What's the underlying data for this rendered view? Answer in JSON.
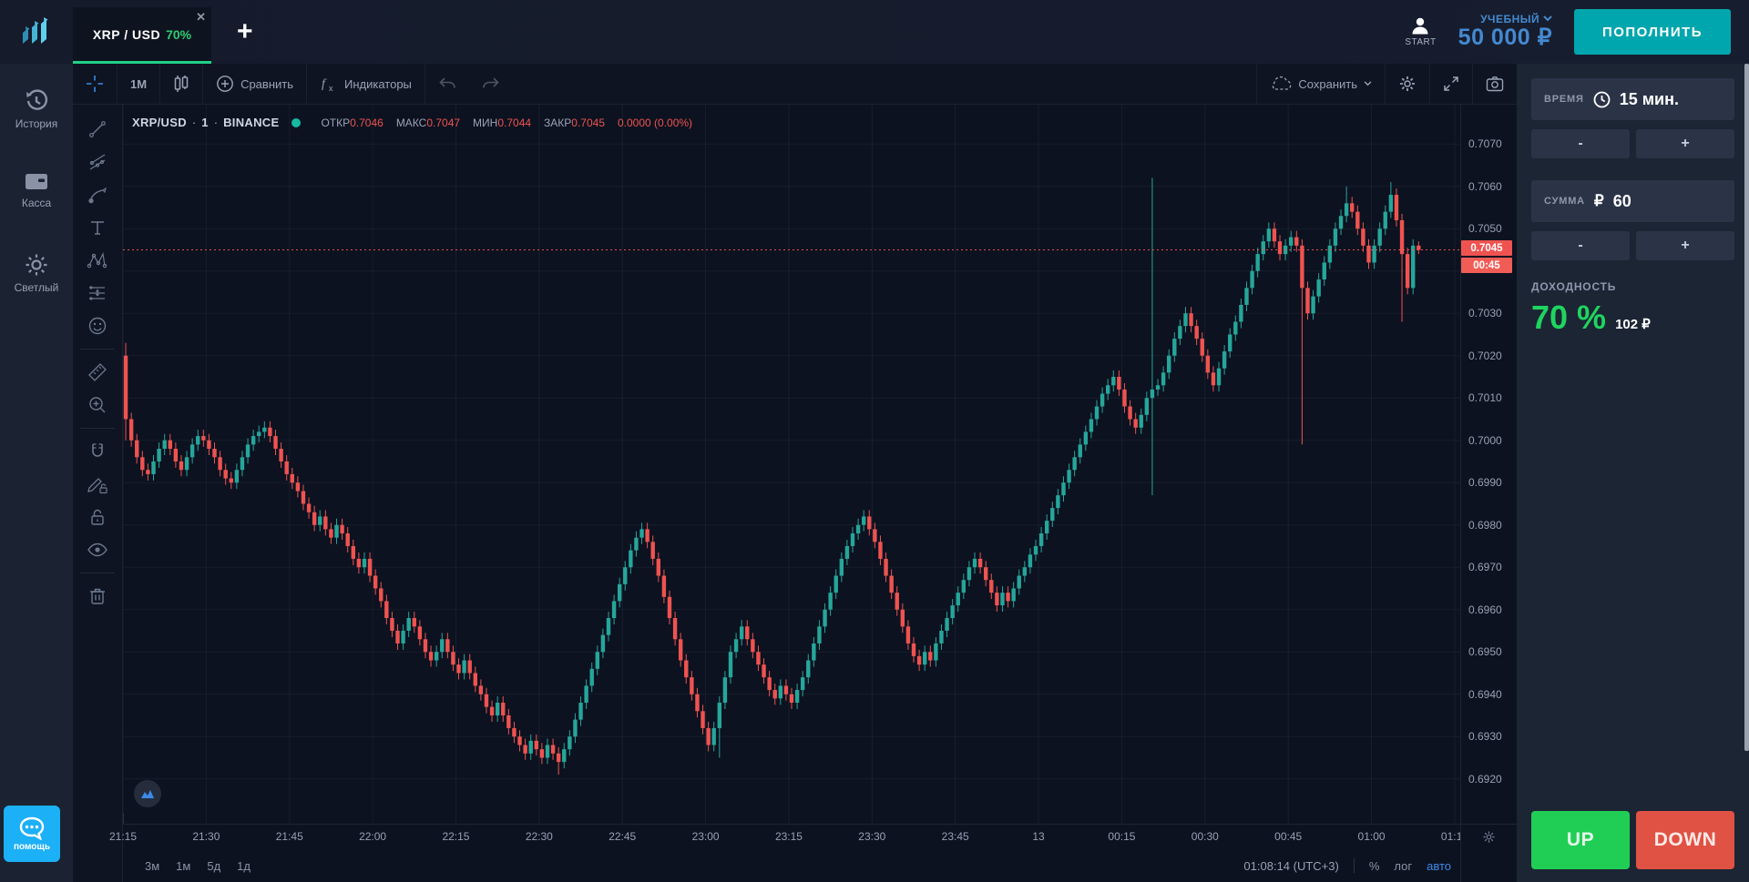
{
  "topbar": {
    "tab": {
      "symbol": "XRP / USD",
      "payout": "70%",
      "close": "✕"
    },
    "add_tab": "+",
    "start_label": "START",
    "account_type": "УЧЕБНЫЙ",
    "balance": "50 000 ₽",
    "deposit_button": "ПОПОЛНИТЬ"
  },
  "sidebar": {
    "items": [
      {
        "label": "История"
      },
      {
        "label": "Касса"
      },
      {
        "label": "Светлый"
      }
    ],
    "help_label": "помощь"
  },
  "chart_toolbar": {
    "interval": "1М",
    "compare": "Сравнить",
    "indicators": "Индикаторы",
    "save": "Сохранить"
  },
  "legend": {
    "symbol": "XRP/USD",
    "sep1": "·",
    "interval": "1",
    "sep2": "·",
    "exchange": "BINANCE",
    "open_label": "ОТКР",
    "open": "0.7046",
    "high_label": "МАКС",
    "high": "0.7047",
    "low_label": "МИН",
    "low": "0.7044",
    "close_label": "ЗАКР",
    "close": "0.7045",
    "change": "0.0000 (0.00%)"
  },
  "price_axis": {
    "ticks": [
      0.707,
      0.706,
      0.705,
      0.703,
      0.702,
      0.701,
      0.7,
      0.699,
      0.698,
      0.697,
      0.696,
      0.695,
      0.694,
      0.693,
      0.692
    ],
    "last_price": "0.7045",
    "countdown": "00:45"
  },
  "time_axis": {
    "labels": [
      "21:15",
      "21:30",
      "21:45",
      "22:00",
      "22:15",
      "22:30",
      "22:45",
      "23:00",
      "23:15",
      "23:30",
      "23:45",
      "13",
      "00:15",
      "00:30",
      "00:45",
      "01:00",
      "01:15"
    ],
    "minutes_step": 15
  },
  "bottom_bar": {
    "ranges": [
      "3м",
      "1м",
      "5д",
      "1д"
    ],
    "clock": "01:08:14 (UTC+3)",
    "percent": "%",
    "log": "лог",
    "auto": "авто"
  },
  "trade_panel": {
    "time_label": "ВРЕМЯ",
    "time_value": "15 мин.",
    "amount_label": "СУММА",
    "amount_currency": "₽",
    "amount_value": "60",
    "minus": "-",
    "plus": "+",
    "payout_label": "ДОХОДНОСТЬ",
    "payout_percent": "70 %",
    "payout_amount": "102 ₽",
    "up": "UP",
    "down": "DOWN"
  },
  "colors": {
    "candle_up": "#26a69a",
    "candle_down": "#ef5350",
    "price_line": "#ef5350",
    "badge_price": "#ef5350",
    "badge_countdown": "#f05d56",
    "up_button": "#21ce55",
    "down_button": "#e05243",
    "deposit_teal": "#00a6ad",
    "blue_text": "#4489cf",
    "help_blue": "#1cb0f6",
    "payout_green": "#1fd45f",
    "tab_underline": "#1fd286",
    "grid": "rgba(255,255,255,0.05)"
  },
  "chart_data": {
    "type": "candlestick",
    "symbol": "XRP/USD",
    "exchange": "BINANCE",
    "interval_minutes": 1,
    "start_time": "21:15",
    "end_time": "01:08",
    "axis_end_time": "01:15",
    "x_minutes_total": 241,
    "y_range": [
      0.69094,
      0.70793
    ],
    "tick_step": 0.001,
    "current_price": 0.7045,
    "first_open": 0.702,
    "default_wick": 0.00015,
    "closes": [
      0.7005,
      0.7,
      0.6996,
      0.6993,
      0.6992,
      0.6995,
      0.6998,
      0.7,
      0.6998,
      0.6995,
      0.6993,
      0.6996,
      0.6999,
      0.7001,
      0.7,
      0.6998,
      0.6996,
      0.6993,
      0.6991,
      0.699,
      0.6993,
      0.6996,
      0.6999,
      0.7001,
      0.7002,
      0.7003,
      0.7001,
      0.6998,
      0.6995,
      0.6992,
      0.699,
      0.6988,
      0.6985,
      0.6983,
      0.698,
      0.6982,
      0.6979,
      0.6977,
      0.698,
      0.6978,
      0.6975,
      0.6972,
      0.697,
      0.6972,
      0.6968,
      0.6965,
      0.6962,
      0.6958,
      0.6955,
      0.6952,
      0.6955,
      0.6958,
      0.6956,
      0.6953,
      0.695,
      0.6948,
      0.695,
      0.6953,
      0.695,
      0.6947,
      0.6945,
      0.6948,
      0.6945,
      0.6942,
      0.694,
      0.6937,
      0.6935,
      0.6938,
      0.6935,
      0.6932,
      0.693,
      0.6928,
      0.6926,
      0.6929,
      0.6927,
      0.6925,
      0.6928,
      0.6926,
      0.6924,
      0.6927,
      0.693,
      0.6934,
      0.6938,
      0.6942,
      0.6946,
      0.695,
      0.6954,
      0.6958,
      0.6962,
      0.6966,
      0.697,
      0.6974,
      0.6977,
      0.6979,
      0.6976,
      0.6972,
      0.6968,
      0.6963,
      0.6958,
      0.6953,
      0.6948,
      0.6944,
      0.694,
      0.6936,
      0.6932,
      0.6928,
      0.6932,
      0.6938,
      0.6944,
      0.695,
      0.6953,
      0.6956,
      0.6953,
      0.695,
      0.6947,
      0.6944,
      0.6941,
      0.6939,
      0.6942,
      0.694,
      0.6938,
      0.6941,
      0.6944,
      0.6948,
      0.6952,
      0.6956,
      0.696,
      0.6964,
      0.6968,
      0.6972,
      0.6975,
      0.6978,
      0.698,
      0.6982,
      0.6979,
      0.6976,
      0.6972,
      0.6968,
      0.6964,
      0.696,
      0.6956,
      0.6952,
      0.6949,
      0.6947,
      0.695,
      0.6948,
      0.6952,
      0.6955,
      0.6958,
      0.6961,
      0.6964,
      0.6967,
      0.697,
      0.6972,
      0.697,
      0.6967,
      0.6964,
      0.6961,
      0.6964,
      0.6962,
      0.6965,
      0.6968,
      0.697,
      0.6973,
      0.6975,
      0.6978,
      0.6981,
      0.6984,
      0.6987,
      0.699,
      0.6993,
      0.6996,
      0.6999,
      0.7002,
      0.7005,
      0.7008,
      0.7011,
      0.7013,
      0.7015,
      0.7012,
      0.7008,
      0.7005,
      0.7003,
      0.7006,
      0.701,
      0.7012,
      0.7013,
      0.7016,
      0.702,
      0.7024,
      0.7027,
      0.703,
      0.7027,
      0.7024,
      0.702,
      0.7016,
      0.7013,
      0.7017,
      0.7021,
      0.7025,
      0.7028,
      0.7032,
      0.7036,
      0.704,
      0.7044,
      0.7047,
      0.705,
      0.7047,
      0.7044,
      0.7046,
      0.7048,
      0.7046,
      0.7036,
      0.703,
      0.7034,
      0.7038,
      0.7042,
      0.7046,
      0.705,
      0.7053,
      0.7056,
      0.7054,
      0.705,
      0.7046,
      0.7042,
      0.7046,
      0.705,
      0.7054,
      0.7058,
      0.7052,
      0.7044,
      0.7036,
      0.7046,
      0.7045
    ],
    "wick_overrides": {
      "0": [
        0.7023,
        0.7
      ],
      "78": [
        null,
        0.6921
      ],
      "107": [
        null,
        0.6925
      ],
      "185": [
        0.7062,
        0.6987
      ],
      "212": [
        null,
        0.6999
      ],
      "220": [
        0.706,
        null
      ],
      "228": [
        0.7061,
        null
      ],
      "230": [
        null,
        0.7028
      ],
      "233": [
        0.7047,
        0.7044
      ]
    }
  }
}
